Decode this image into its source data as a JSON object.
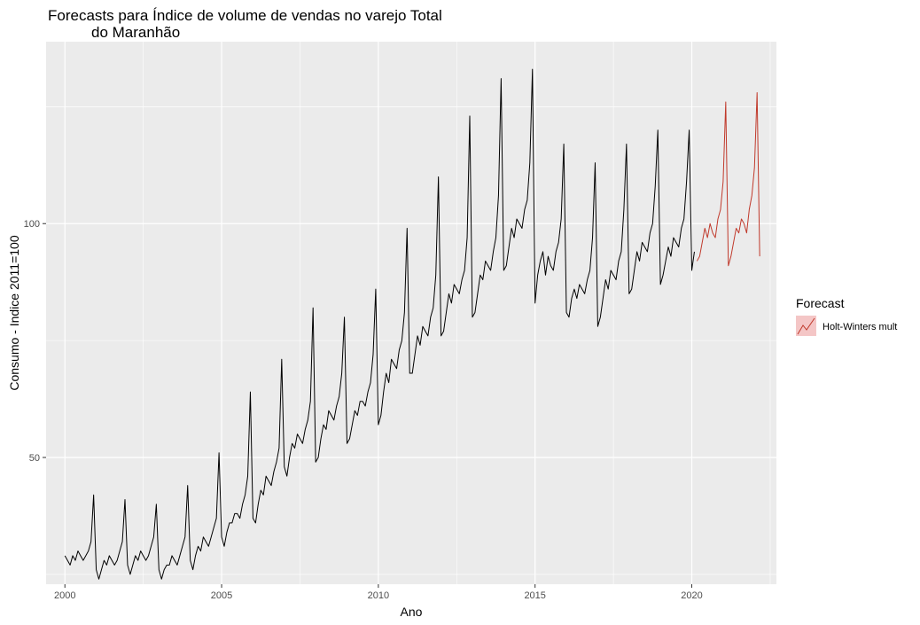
{
  "chart_data": {
    "type": "line",
    "title_line1": "Forecasts para Índice de volume de vendas no varejo Total",
    "title_line2": "do Maranhão",
    "xlabel": "Ano",
    "ylabel": "Consumo - Indice 2011=100",
    "x_ticks": [
      "2000",
      "2005",
      "2010",
      "2015",
      "2020"
    ],
    "x_tick_values": [
      2000,
      2005,
      2010,
      2015,
      2020
    ],
    "y_ticks": [
      "50",
      "100"
    ],
    "y_tick_values": [
      50,
      100
    ],
    "xlim": [
      1999.4,
      2022.7
    ],
    "ylim": [
      22.9,
      138.9
    ],
    "grid": true,
    "legend": {
      "title": "Forecast",
      "position": "right",
      "entries": [
        {
          "label": "Holt-Winters mult",
          "color": "#c0392b"
        }
      ]
    },
    "colors": {
      "panel_bg": "#ebebeb",
      "grid": "#ffffff",
      "observed": "#000000",
      "forecast": "#c0392b",
      "legend_key_fill": "#f4c6c6"
    },
    "series": [
      {
        "start_year": 2000,
        "frequency": 12,
        "values": [
          29,
          28,
          27,
          29,
          28,
          30,
          29,
          28,
          29,
          30,
          32,
          42,
          26,
          24,
          26,
          28,
          27,
          29,
          28,
          27,
          28,
          30,
          32,
          41,
          27,
          25,
          27,
          29,
          28,
          30,
          29,
          28,
          29,
          31,
          33,
          40,
          26,
          24,
          26,
          27,
          27,
          29,
          28,
          27,
          29,
          31,
          33,
          44,
          28,
          26,
          29,
          31,
          30,
          33,
          32,
          31,
          33,
          35,
          37,
          51,
          33,
          31,
          34,
          36,
          36,
          38,
          38,
          37,
          40,
          42,
          46,
          64,
          37,
          36,
          40,
          43,
          42,
          46,
          45,
          44,
          47,
          49,
          52,
          71,
          48,
          46,
          50,
          53,
          52,
          55,
          54,
          53,
          56,
          58,
          62,
          82,
          49,
          50,
          54,
          57,
          56,
          60,
          59,
          58,
          61,
          63,
          68,
          80,
          53,
          54,
          57,
          60,
          59,
          62,
          62,
          61,
          64,
          66,
          72,
          86,
          57,
          59,
          64,
          68,
          66,
          71,
          70,
          69,
          73,
          75,
          81,
          99,
          68,
          68,
          72,
          76,
          74,
          78,
          77,
          76,
          80,
          82,
          89,
          110,
          76,
          77,
          81,
          85,
          83,
          87,
          86,
          85,
          88,
          90,
          97,
          123,
          80,
          81,
          85,
          89,
          88,
          92,
          91,
          90,
          94,
          97,
          106,
          131,
          90,
          91,
          95,
          99,
          97,
          101,
          100,
          99,
          103,
          105,
          113,
          133,
          83,
          89,
          92,
          94,
          89,
          93,
          91,
          90,
          94,
          96,
          101,
          117,
          81,
          80,
          84,
          86,
          84,
          87,
          86,
          85,
          88,
          90,
          97,
          113,
          78,
          80,
          84,
          88,
          86,
          90,
          89,
          88,
          92,
          94,
          103,
          117,
          85,
          86,
          90,
          94,
          92,
          96,
          95,
          94,
          98,
          100,
          108,
          120,
          87,
          89,
          92,
          95,
          93,
          97,
          96,
          95,
          99,
          101,
          109,
          120,
          90,
          94
        ]
      },
      {
        "name": "Holt-Winters mult",
        "start_year": 2020.1667,
        "frequency": 12,
        "values": [
          92,
          93,
          96,
          99,
          97,
          100,
          98,
          97,
          101,
          103,
          109,
          126,
          91,
          93,
          96,
          99,
          98,
          101,
          100,
          98,
          103,
          106,
          112,
          128,
          93
        ]
      }
    ]
  }
}
